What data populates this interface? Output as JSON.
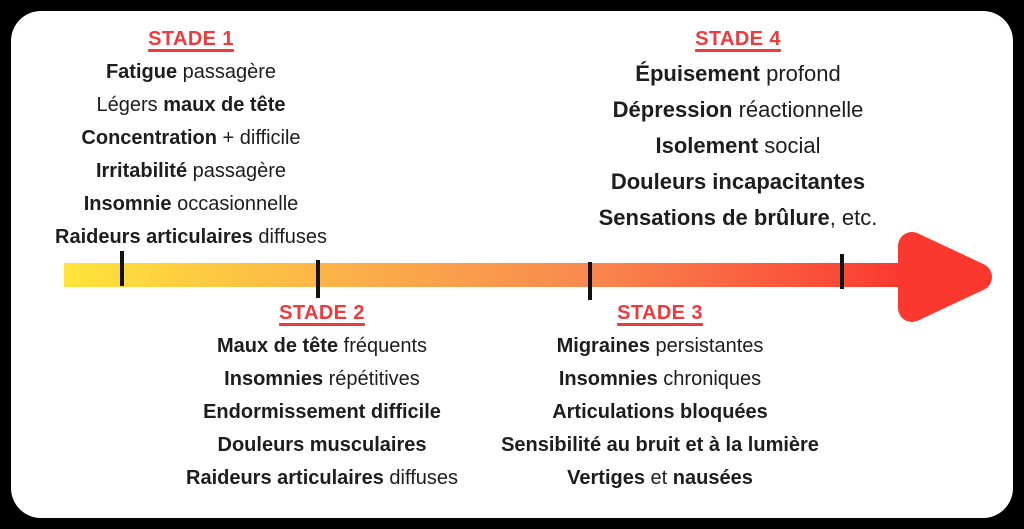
{
  "colors": {
    "title_red": "#EF393C",
    "arrow_red": "#FA382E",
    "bar_yellow": "#FFE43A",
    "bar_orange": "#FBB049",
    "bar_deep_orange": "#F9894E",
    "bar_red": "#FA4A38",
    "tick": "#121212",
    "text": "#1D1D1F",
    "card_bg": "#FFFFFF",
    "page_bg": "#000000"
  },
  "timeline": {
    "direction": "left-to-right",
    "tick_count": 4
  },
  "stages": [
    {
      "key": "stade-1",
      "title": "STADE 1",
      "items": [
        [
          {
            "text": "Fatigue",
            "bold": true
          },
          {
            "text": " passagère",
            "bold": false
          }
        ],
        [
          {
            "text": "Légers ",
            "bold": false
          },
          {
            "text": "maux de tête",
            "bold": true
          }
        ],
        [
          {
            "text": "Concentration",
            "bold": true
          },
          {
            "text": " + difficile",
            "bold": false
          }
        ],
        [
          {
            "text": "Irritabilité",
            "bold": true
          },
          {
            "text": " passagère",
            "bold": false
          }
        ],
        [
          {
            "text": "Insomnie",
            "bold": true
          },
          {
            "text": " occasionnelle",
            "bold": false
          }
        ],
        [
          {
            "text": "Raideurs articulaires",
            "bold": true
          },
          {
            "text": " diffuses",
            "bold": false
          }
        ]
      ]
    },
    {
      "key": "stade-2",
      "title": "STADE 2",
      "items": [
        [
          {
            "text": "Maux de tête",
            "bold": true
          },
          {
            "text": " fréquents",
            "bold": false
          }
        ],
        [
          {
            "text": "Insomnies",
            "bold": true
          },
          {
            "text": " répétitives",
            "bold": false
          }
        ],
        [
          {
            "text": "Endormissement difficile",
            "bold": true
          }
        ],
        [
          {
            "text": "Douleurs musculaires",
            "bold": true
          }
        ],
        [
          {
            "text": "Raideurs articulaires",
            "bold": true
          },
          {
            "text": " diffuses",
            "bold": false
          }
        ]
      ]
    },
    {
      "key": "stade-3",
      "title": "STADE 3",
      "items": [
        [
          {
            "text": "Migraines",
            "bold": true
          },
          {
            "text": " persistantes",
            "bold": false
          }
        ],
        [
          {
            "text": "Insomnies",
            "bold": true
          },
          {
            "text": " chroniques",
            "bold": false
          }
        ],
        [
          {
            "text": "Articulations bloquées",
            "bold": true
          }
        ],
        [
          {
            "text": "Sensibilité au bruit et à la lumière",
            "bold": true
          }
        ],
        [
          {
            "text": "Vertiges",
            "bold": true
          },
          {
            "text": " et ",
            "bold": false
          },
          {
            "text": "nausées",
            "bold": true
          }
        ]
      ]
    },
    {
      "key": "stade-4",
      "title": "STADE 4",
      "items": [
        [
          {
            "text": "Épuisement",
            "bold": true
          },
          {
            "text": " profond",
            "bold": false
          }
        ],
        [
          {
            "text": "Dépression",
            "bold": true
          },
          {
            "text": " réactionnelle",
            "bold": false
          }
        ],
        [
          {
            "text": "Isolement",
            "bold": true
          },
          {
            "text": " social",
            "bold": false
          }
        ],
        [
          {
            "text": "Douleurs incapacitantes",
            "bold": true
          }
        ],
        [
          {
            "text": "Sensations de brûlure",
            "bold": true
          },
          {
            "text": ", etc.",
            "bold": false
          }
        ]
      ]
    }
  ]
}
